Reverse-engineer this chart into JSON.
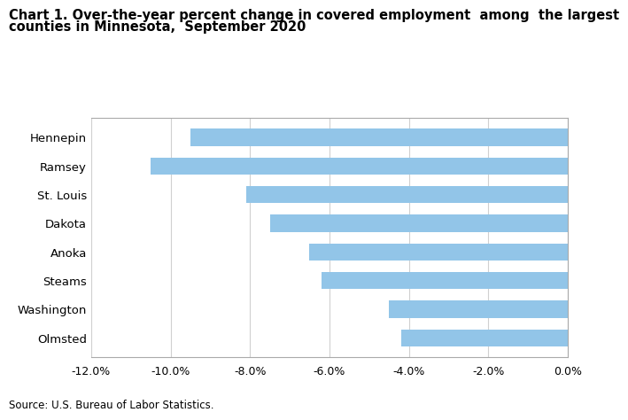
{
  "title_line1": "Chart 1. Over-the-year percent change in covered employment  among  the largest",
  "title_line2": "counties in Minnesota,  September 2020",
  "categories": [
    "Hennepin",
    "Ramsey",
    "St. Louis",
    "Dakota",
    "Anoka",
    "Steams",
    "Washington",
    "Olmsted"
  ],
  "values": [
    -9.5,
    -10.5,
    -8.1,
    -7.5,
    -6.5,
    -6.2,
    -4.5,
    -4.2
  ],
  "bar_color": "#92C5E8",
  "xlim": [
    -12.0,
    0.0
  ],
  "xticks": [
    -12.0,
    -10.0,
    -8.0,
    -6.0,
    -4.0,
    -2.0,
    0.0
  ],
  "source": "Source: U.S. Bureau of Labor Statistics.",
  "background_color": "#ffffff",
  "grid_color": "#d0d0d0",
  "title_fontsize": 10.5,
  "label_fontsize": 9.5,
  "tick_fontsize": 9
}
